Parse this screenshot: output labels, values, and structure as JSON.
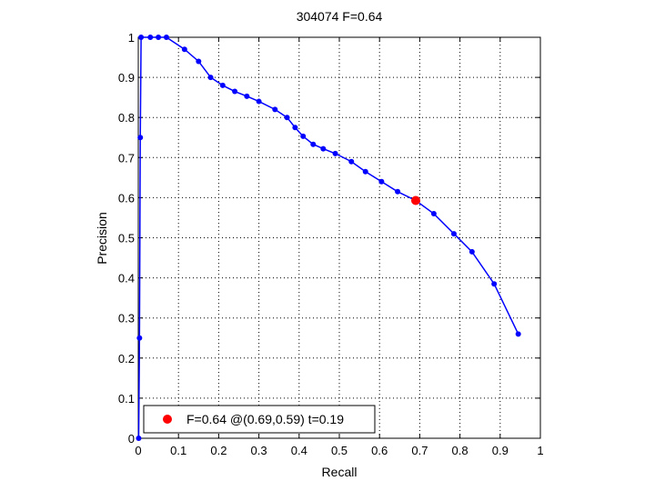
{
  "chart_data": {
    "type": "line",
    "title": "304074 F=0.64",
    "xlabel": "Recall",
    "ylabel": "Precision",
    "xlim": [
      0,
      1
    ],
    "ylim": [
      0,
      1
    ],
    "xticks": [
      "0",
      "0.1",
      "0.2",
      "0.3",
      "0.4",
      "0.5",
      "0.6",
      "0.7",
      "0.8",
      "0.9",
      "1"
    ],
    "yticks": [
      "0",
      "0.1",
      "0.2",
      "0.3",
      "0.4",
      "0.5",
      "0.6",
      "0.7",
      "0.8",
      "0.9",
      "1"
    ],
    "grid": true,
    "legend_position": "bottom-left",
    "series": [
      {
        "color": "#0000ff",
        "x": [
          0.001,
          0.003,
          0.005,
          0.007,
          0.03,
          0.05,
          0.07,
          0.115,
          0.15,
          0.18,
          0.21,
          0.24,
          0.27,
          0.3,
          0.34,
          0.37,
          0.39,
          0.41,
          0.435,
          0.46,
          0.49,
          0.53,
          0.565,
          0.605,
          0.645,
          0.69,
          0.735,
          0.785,
          0.83,
          0.885,
          0.945
        ],
        "y": [
          0.0,
          0.25,
          0.75,
          1.0,
          1.0,
          1.0,
          1.0,
          0.97,
          0.94,
          0.9,
          0.88,
          0.865,
          0.853,
          0.84,
          0.82,
          0.8,
          0.775,
          0.753,
          0.733,
          0.722,
          0.71,
          0.69,
          0.665,
          0.64,
          0.615,
          0.593,
          0.56,
          0.51,
          0.465,
          0.385,
          0.26
        ]
      }
    ],
    "marker_series": [
      {
        "color": "#ff0000",
        "x": [
          0.69
        ],
        "y": [
          0.593
        ],
        "label": "F=0.64 @(0.69,0.59) t=0.19"
      }
    ]
  }
}
